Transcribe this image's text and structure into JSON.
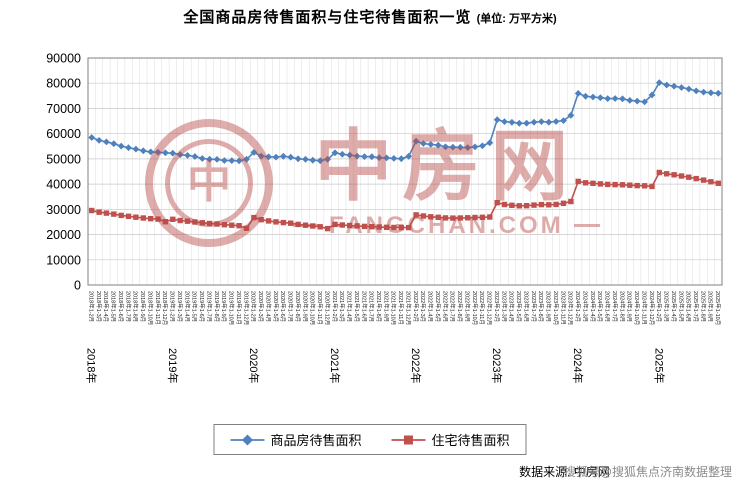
{
  "title": {
    "main": "全国商品房待售面积与住宅待售面积一览",
    "unit": "(单位: 万平方米)"
  },
  "watermark": {
    "logo_glyph": "中",
    "brand": "中房网",
    "domain": "FANGCHAN.COM"
  },
  "source": {
    "prefix": "数据来源: 中房网",
    "overlay": "搜狐号@搜狐焦点济南数据整理"
  },
  "legend": [
    {
      "name": "商品房待售面积",
      "color": "#4f81bd",
      "marker": "diamond"
    },
    {
      "name": "住宅待售面积",
      "color": "#c0504d",
      "marker": "square"
    }
  ],
  "chart_data": {
    "type": "line",
    "title": "全国商品房待售面积与住宅待售面积一览",
    "unit": "万平方米",
    "grid": true,
    "legend_position": "bottom",
    "ylim": [
      0,
      90000
    ],
    "ytick_interval": 10000,
    "ytick_labels": [
      "0",
      "10000",
      "20000",
      "30000",
      "40000",
      "50000",
      "60000",
      "70000",
      "80000",
      "90000"
    ],
    "year_labels": [
      {
        "label": "2018年",
        "index": 0
      },
      {
        "label": "2019年",
        "index": 11
      },
      {
        "label": "2020年",
        "index": 22
      },
      {
        "label": "2021年",
        "index": 33
      },
      {
        "label": "2022年",
        "index": 44
      },
      {
        "label": "2023年",
        "index": 55
      },
      {
        "label": "2024年",
        "index": 66
      },
      {
        "label": "2025年",
        "index": 77
      }
    ],
    "categories": [
      "2018年1-2月",
      "2018年1-3月",
      "2018年1-4月",
      "2018年1-5月",
      "2018年1-6月",
      "2018年1-7月",
      "2018年1-8月",
      "2018年1-9月",
      "2018年1-10月",
      "2018年1-11月",
      "2018年1-12月",
      "2019年1-2月",
      "2019年1-3月",
      "2019年1-4月",
      "2019年1-5月",
      "2019年1-6月",
      "2019年1-7月",
      "2019年1-8月",
      "2019年1-9月",
      "2019年1-10月",
      "2019年1-11月",
      "2019年1-12月",
      "2020年1-2月",
      "2020年1-3月",
      "2020年1-4月",
      "2020年1-5月",
      "2020年1-6月",
      "2020年1-7月",
      "2020年1-8月",
      "2020年1-9月",
      "2020年1-10月",
      "2020年1-11月",
      "2020年1-12月",
      "2021年1-2月",
      "2021年1-3月",
      "2021年1-4月",
      "2021年1-5月",
      "2021年1-6月",
      "2021年1-7月",
      "2021年1-8月",
      "2021年1-9月",
      "2021年1-10月",
      "2021年1-11月",
      "2021年1-12月",
      "2022年1-2月",
      "2022年1-3月",
      "2022年1-4月",
      "2022年1-5月",
      "2022年1-6月",
      "2022年1-7月",
      "2022年1-8月",
      "2022年1-9月",
      "2022年1-10月",
      "2022年1-11月",
      "2022年1-12月",
      "2023年1-2月",
      "2023年1-3月",
      "2023年1-4月",
      "2023年1-5月",
      "2023年1-6月",
      "2023年1-7月",
      "2023年1-8月",
      "2023年1-9月",
      "2023年1-10月",
      "2023年1-11月",
      "2023年1-12月",
      "2024年1-2月",
      "2024年1-3月",
      "2024年1-4月",
      "2024年1-5月",
      "2024年1-6月",
      "2024年1-7月",
      "2024年1-8月",
      "2024年1-9月",
      "2024年1-10月",
      "2024年1-11月",
      "2024年1-12月",
      "2025年1-2月",
      "2025年1-3月",
      "2025年1-4月",
      "2025年1-5月",
      "2025年1-6月",
      "2025年1-7月",
      "2025年1-8月",
      "2025年1-9月",
      "2025年1-10月"
    ],
    "series": [
      {
        "name": "商品房待售面积",
        "color": "#4f81bd",
        "marker": "diamond",
        "values": [
          58468,
          57329,
          56726,
          56010,
          55083,
          54428,
          53873,
          53191,
          52789,
          52627,
          52414,
          52251,
          51646,
          51380,
          50928,
          50162,
          49876,
          49784,
          49346,
          49323,
          49221,
          49821,
          52563,
          51104,
          50825,
          50713,
          51034,
          50682,
          50052,
          49844,
          49492,
          49287,
          49850,
          52425,
          51835,
          51512,
          51087,
          50917,
          50864,
          50489,
          50385,
          50203,
          50092,
          51023,
          57026,
          56113,
          55734,
          55433,
          54784,
          54655,
          54605,
          54478,
          54734,
          55203,
          56366,
          65528,
          64770,
          64487,
          64120,
          64159,
          64564,
          64795,
          64537,
          64835,
          65198,
          67295,
          75969,
          74833,
          74553,
          74256,
          73894,
          73926,
          73811,
          73177,
          72909,
          72614,
          75327,
          80254,
          79314,
          78824,
          78285,
          77723,
          76973,
          76468,
          76185,
          76014
        ]
      },
      {
        "name": "住宅待售面积",
        "color": "#c0504d",
        "marker": "square",
        "values": [
          29538,
          28875,
          28487,
          28095,
          27607,
          27251,
          26869,
          26575,
          26284,
          26133,
          25091,
          26055,
          25583,
          25291,
          24966,
          24658,
          24399,
          24180,
          23904,
          23695,
          23510,
          22473,
          26708,
          25901,
          25403,
          25006,
          24753,
          24500,
          24038,
          23700,
          23400,
          23084,
          22379,
          24036,
          23804,
          23610,
          23420,
          23250,
          23110,
          22980,
          22880,
          22790,
          22750,
          22761,
          27804,
          27344,
          27039,
          26824,
          26619,
          26524,
          26576,
          26659,
          26751,
          26853,
          26947,
          32612,
          31911,
          31609,
          31411,
          31460,
          31662,
          31863,
          31790,
          31952,
          32381,
          33119,
          41074,
          40522,
          40317,
          40089,
          39892,
          39823,
          39711,
          39563,
          39421,
          39327,
          39088,
          44623,
          44107,
          43689,
          43221,
          42755,
          42198,
          41590,
          40920,
          40317
        ]
      }
    ]
  }
}
